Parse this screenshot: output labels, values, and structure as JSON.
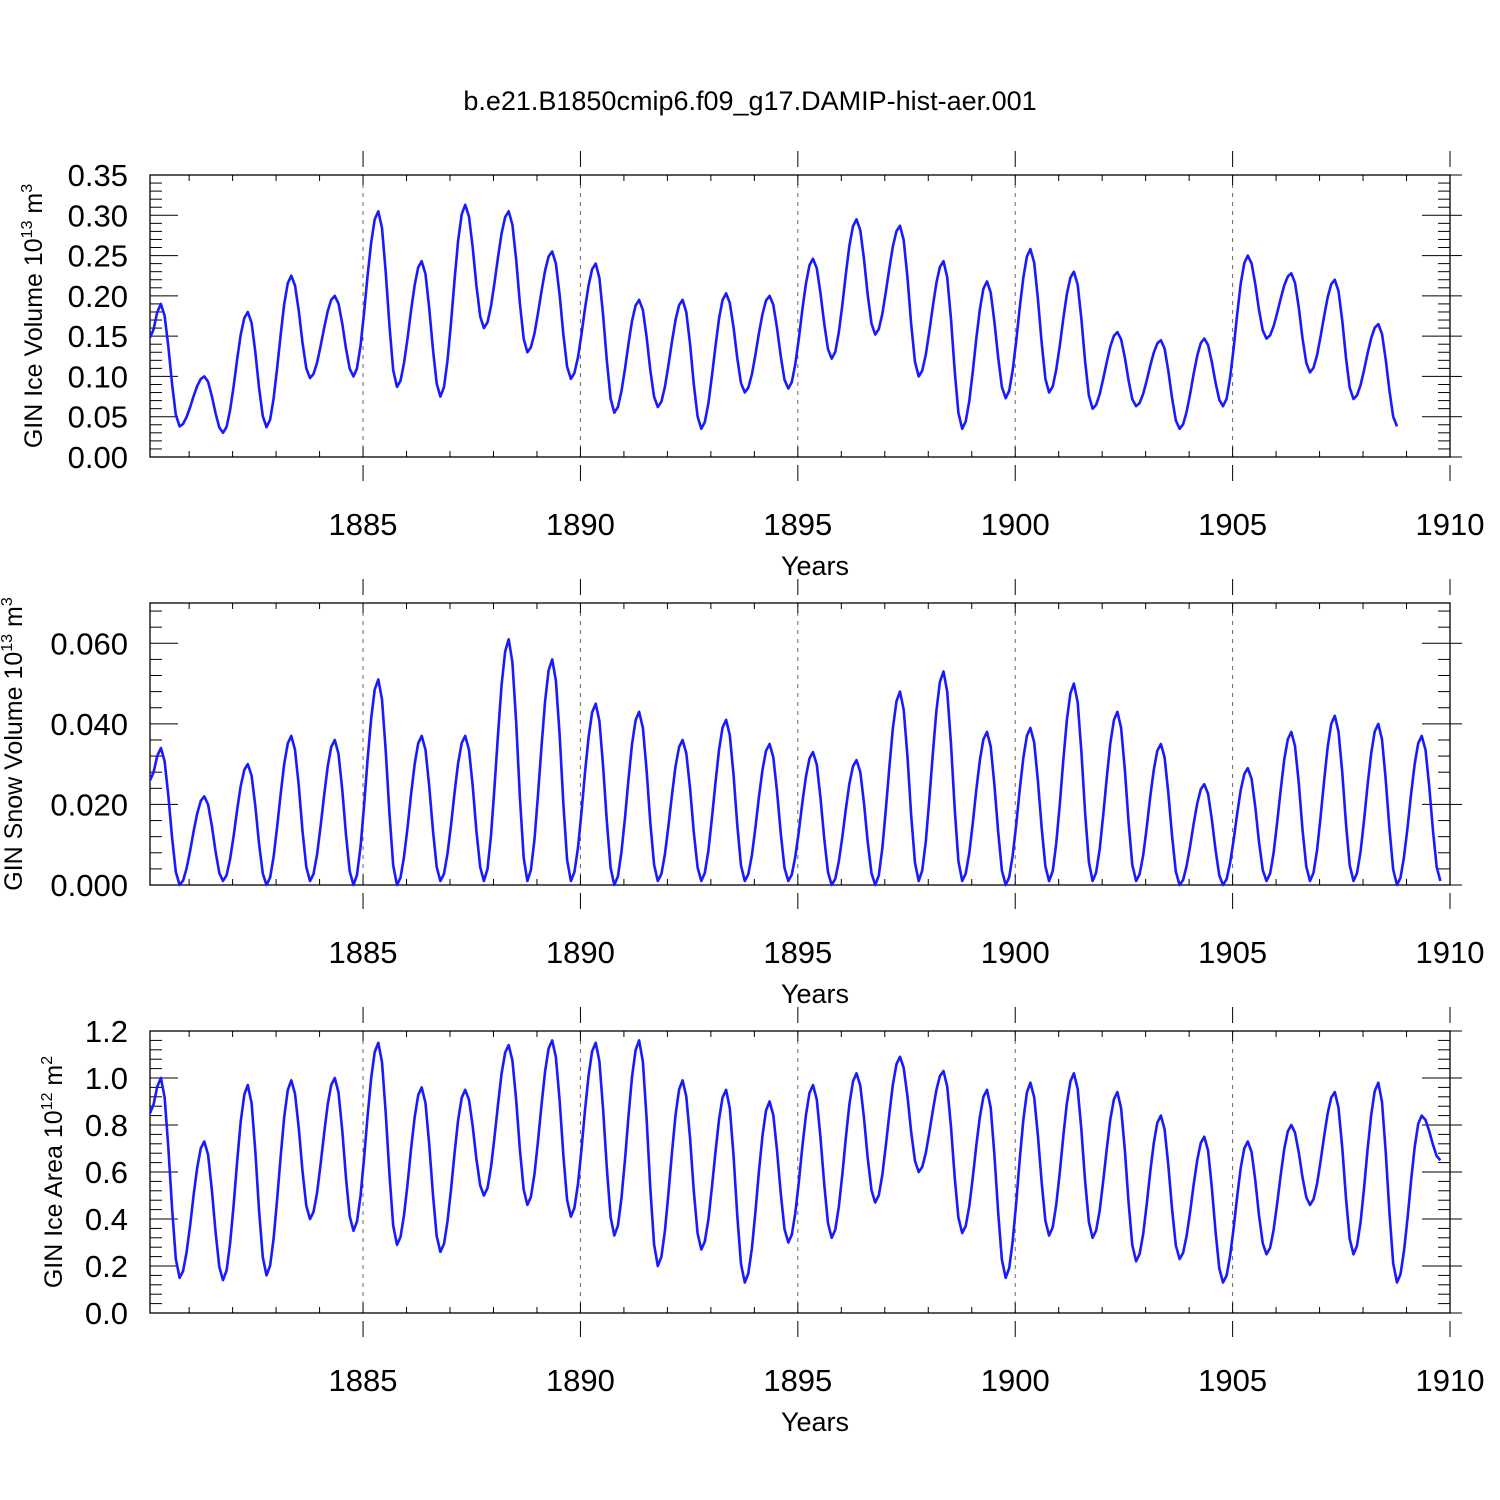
{
  "title": "b.e21.B1850cmip6.f09_g17.DAMIP-hist-aer.001",
  "line_color": "#1a1aff",
  "chart_data": [
    {
      "type": "line",
      "title": "b.e21.B1850cmip6.f09_g17.DAMIP-hist-aer.001",
      "xlabel": "Years",
      "ylabel": {
        "base": "GIN Ice Volume 10",
        "exp": "13",
        "unit": " m",
        "unit_exp": "3"
      },
      "xlim": [
        1880.1,
        1910.0
      ],
      "ylim": [
        0,
        0.35
      ],
      "xticks": [
        1885,
        1890,
        1895,
        1900,
        1905,
        1910
      ],
      "xtick_labels": [
        "1885",
        "1890",
        "1895",
        "1900",
        "1905",
        "1910"
      ],
      "yticks": [
        0,
        0.05,
        0.1,
        0.15,
        0.2,
        0.25,
        0.3,
        0.35
      ],
      "ytick_labels": [
        "0.00",
        "0.05",
        "0.10",
        "0.15",
        "0.20",
        "0.25",
        "0.30",
        "0.35"
      ],
      "grid": "vertical dashed at major x ticks",
      "series": [
        {
          "name": "GIN Ice Volume",
          "peaks": [
            0.19,
            0.1,
            0.18,
            0.225,
            0.2,
            0.305,
            0.243,
            0.313,
            0.305,
            0.255,
            0.24,
            0.195,
            0.195,
            0.203,
            0.2,
            0.246,
            0.295,
            0.287,
            0.243,
            0.218,
            0.258,
            0.23,
            0.155,
            0.145,
            0.147,
            0.25,
            0.228,
            0.22,
            0.165
          ],
          "troughs": [
            0.148,
            0.038,
            0.03,
            0.037,
            0.098,
            0.1,
            0.087,
            0.075,
            0.16,
            0.13,
            0.097,
            0.055,
            0.062,
            0.035,
            0.08,
            0.085,
            0.122,
            0.152,
            0.1,
            0.035,
            0.073,
            0.08,
            0.06,
            0.063,
            0.035,
            0.063,
            0.147,
            0.105,
            0.072,
            0.038
          ]
        }
      ]
    },
    {
      "type": "line",
      "xlabel": "Years",
      "ylabel": {
        "base": "GIN Snow Volume 10",
        "exp": "13",
        "unit": " m",
        "unit_exp": "3"
      },
      "xlim": [
        1880.1,
        1910.0
      ],
      "ylim": [
        0,
        0.07
      ],
      "xticks": [
        1885,
        1890,
        1895,
        1900,
        1905,
        1910
      ],
      "xtick_labels": [
        "1885",
        "1890",
        "1895",
        "1900",
        "1905",
        "1910"
      ],
      "yticks": [
        0,
        0.02,
        0.04,
        0.06
      ],
      "ytick_labels": [
        "0.000",
        "0.020",
        "0.040",
        "0.060"
      ],
      "grid": "vertical dashed at major x ticks",
      "series": [
        {
          "name": "GIN Snow Volume",
          "peaks": [
            0.034,
            0.022,
            0.03,
            0.037,
            0.036,
            0.051,
            0.037,
            0.037,
            0.061,
            0.056,
            0.045,
            0.043,
            0.036,
            0.041,
            0.035,
            0.033,
            0.031,
            0.048,
            0.053,
            0.038,
            0.039,
            0.05,
            0.043,
            0.035,
            0.025,
            0.029,
            0.038,
            0.042,
            0.04,
            0.037
          ],
          "troughs": [
            0.026,
            0.0,
            0.001,
            0.0,
            0.001,
            0.0,
            0.0,
            0.001,
            0.001,
            0.001,
            0.001,
            0.0,
            0.001,
            0.001,
            0.001,
            0.001,
            0.0,
            0.0,
            0.001,
            0.001,
            0.0,
            0.001,
            0.001,
            0.001,
            0.0,
            0.0,
            0.001,
            0.001,
            0.001,
            0.0,
            0.001,
            0.0
          ]
        }
      ]
    },
    {
      "type": "line",
      "xlabel": "Years",
      "ylabel": {
        "base": "GIN Ice Area 10",
        "exp": "12",
        "unit": " m",
        "unit_exp": "2"
      },
      "xlim": [
        1880.1,
        1910.0
      ],
      "ylim": [
        0,
        1.2
      ],
      "xticks": [
        1885,
        1890,
        1895,
        1900,
        1905,
        1910
      ],
      "xtick_labels": [
        "1885",
        "1890",
        "1895",
        "1900",
        "1905",
        "1910"
      ],
      "yticks": [
        0,
        0.2,
        0.4,
        0.6,
        0.8,
        1.0,
        1.2
      ],
      "ytick_labels": [
        "0.0",
        "0.2",
        "0.4",
        "0.6",
        "0.8",
        "1.0",
        "1.2"
      ],
      "grid": "vertical dashed at major x ticks",
      "series": [
        {
          "name": "GIN Ice Area",
          "peaks": [
            1.0,
            0.73,
            0.97,
            0.99,
            1.0,
            1.15,
            0.96,
            0.95,
            1.14,
            1.16,
            1.15,
            1.16,
            0.99,
            0.95,
            0.9,
            0.97,
            1.02,
            1.09,
            1.03,
            0.95,
            0.98,
            1.02,
            0.94,
            0.84,
            0.75,
            0.73,
            0.8,
            0.94,
            0.98,
            0.84
          ],
          "troughs": [
            0.85,
            0.15,
            0.14,
            0.16,
            0.4,
            0.35,
            0.29,
            0.26,
            0.5,
            0.46,
            0.41,
            0.33,
            0.2,
            0.27,
            0.13,
            0.3,
            0.32,
            0.47,
            0.6,
            0.34,
            0.15,
            0.33,
            0.32,
            0.22,
            0.23,
            0.13,
            0.25,
            0.46,
            0.25,
            0.13,
            0.65
          ]
        }
      ]
    }
  ]
}
